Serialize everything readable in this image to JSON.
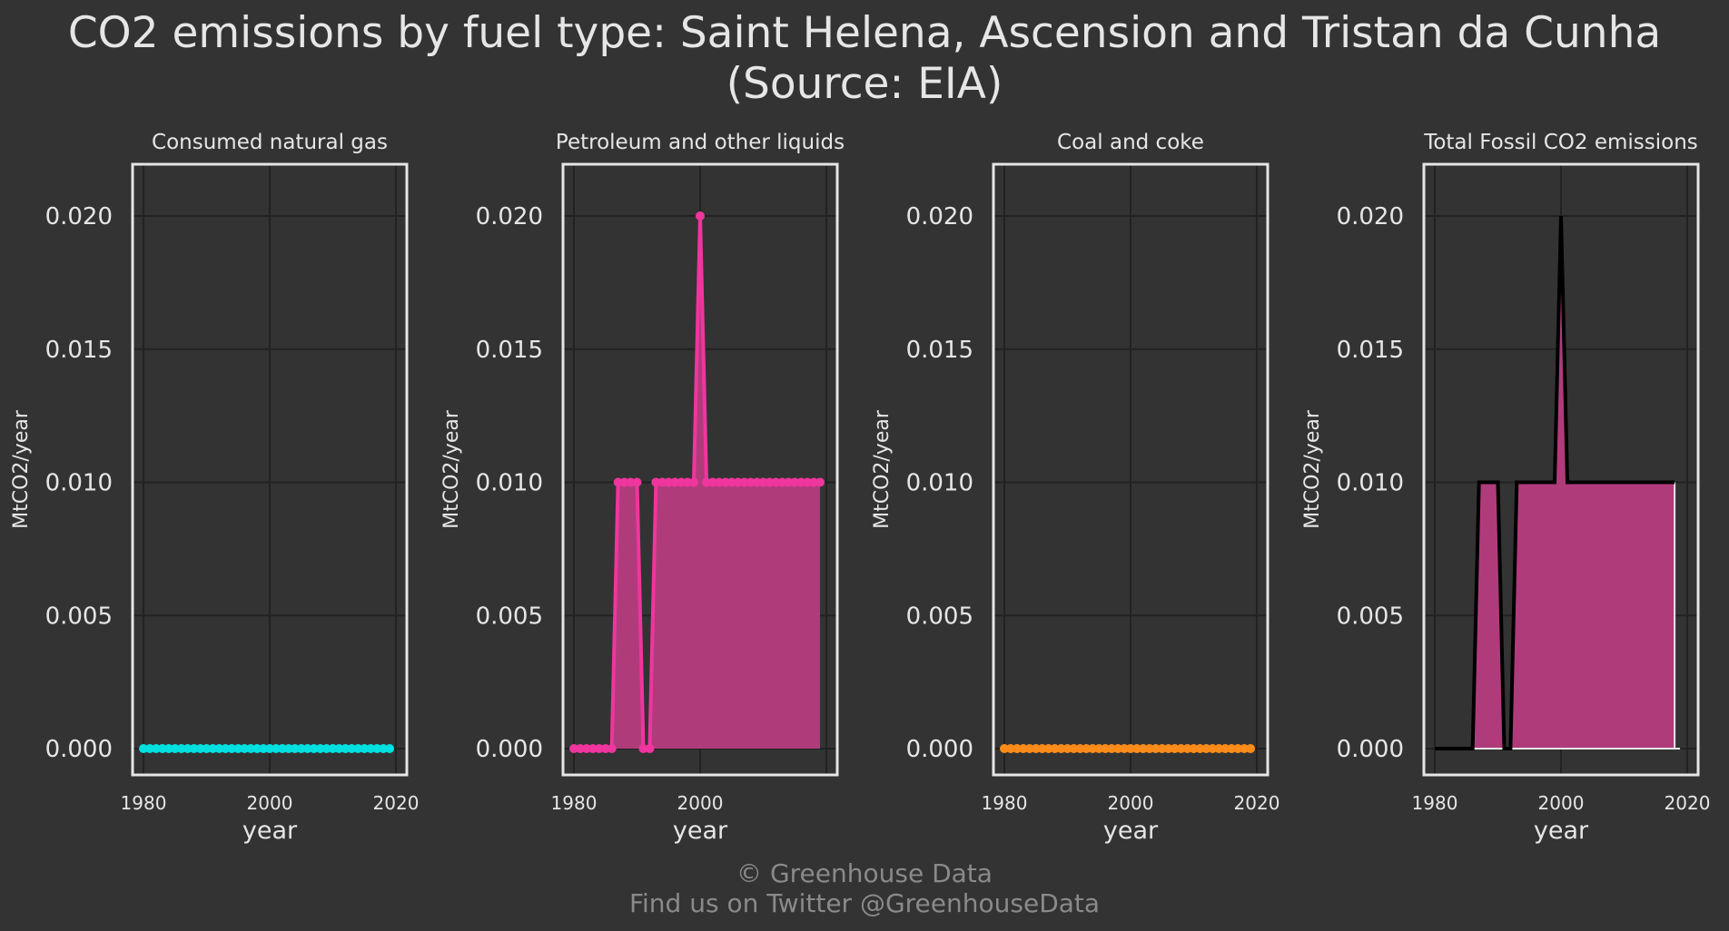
{
  "title_line1": "CO2 emissions by fuel type: Saint Helena, Ascension and Tristan da Cunha",
  "title_line2": "(Source: EIA)",
  "footer_line1": "© Greenhouse Data",
  "footer_line2": "Find us on Twitter @GreenhouseData",
  "colors": {
    "background": "#333333",
    "grid": "#222222",
    "frame": "#e6e6e6",
    "gas": "#00e0e0",
    "petroleum": "#f0359e",
    "petroleum_fill": "#b03b7b",
    "coal": "#ff8c1a",
    "total_line": "#000000",
    "total_fill": "#b03b7b"
  },
  "chart_data": [
    {
      "type": "scatter",
      "title": "Consumed natural gas",
      "xlabel": "year",
      "ylabel": "MtCO2/year",
      "xlim": [
        1980,
        2020
      ],
      "ylim": [
        0,
        0.02
      ],
      "xticks": [
        "1980",
        "2000",
        "2020"
      ],
      "yticks": [
        "0.000",
        "0.005",
        "0.010",
        "0.015",
        "0.020"
      ],
      "x": [
        1980,
        1981,
        1982,
        1983,
        1984,
        1985,
        1986,
        1987,
        1988,
        1989,
        1990,
        1991,
        1992,
        1993,
        1994,
        1995,
        1996,
        1997,
        1998,
        1999,
        2000,
        2001,
        2002,
        2003,
        2004,
        2005,
        2006,
        2007,
        2008,
        2009,
        2010,
        2011,
        2012,
        2013,
        2014,
        2015,
        2016,
        2017,
        2018,
        2019
      ],
      "values": [
        0,
        0,
        0,
        0,
        0,
        0,
        0,
        0,
        0,
        0,
        0,
        0,
        0,
        0,
        0,
        0,
        0,
        0,
        0,
        0,
        0,
        0,
        0,
        0,
        0,
        0,
        0,
        0,
        0,
        0,
        0,
        0,
        0,
        0,
        0,
        0,
        0,
        0,
        0,
        0
      ],
      "color": "#00e0e0"
    },
    {
      "type": "area",
      "title": "Petroleum and other liquids",
      "xlabel": "year",
      "ylabel": "MtCO2/year",
      "xlim": [
        1980,
        2020
      ],
      "ylim": [
        0,
        0.02
      ],
      "xticks": [
        "1980",
        "2000"
      ],
      "yticks": [
        "0.000",
        "0.005",
        "0.010",
        "0.015",
        "0.020"
      ],
      "x": [
        1980,
        1981,
        1982,
        1983,
        1984,
        1985,
        1986,
        1987,
        1988,
        1989,
        1990,
        1991,
        1992,
        1993,
        1994,
        1995,
        1996,
        1997,
        1998,
        1999,
        2000,
        2001,
        2002,
        2003,
        2004,
        2005,
        2006,
        2007,
        2008,
        2009,
        2010,
        2011,
        2012,
        2013,
        2014,
        2015,
        2016,
        2017,
        2018,
        2019
      ],
      "values": [
        0,
        0,
        0,
        0,
        0,
        0,
        0,
        0.01,
        0.01,
        0.01,
        0.01,
        0,
        0,
        0.01,
        0.01,
        0.01,
        0.01,
        0.01,
        0.01,
        0.01,
        0.02,
        0.01,
        0.01,
        0.01,
        0.01,
        0.01,
        0.01,
        0.01,
        0.01,
        0.01,
        0.01,
        0.01,
        0.01,
        0.01,
        0.01,
        0.01,
        0.01,
        0.01,
        0.01,
        0.01
      ],
      "color": "#f0359e"
    },
    {
      "type": "scatter",
      "title": "Coal and coke",
      "xlabel": "year",
      "ylabel": "MtCO2/year",
      "xlim": [
        1980,
        2020
      ],
      "ylim": [
        0,
        0.02
      ],
      "xticks": [
        "1980",
        "2000",
        "2020"
      ],
      "yticks": [
        "0.000",
        "0.005",
        "0.010",
        "0.015",
        "0.020"
      ],
      "x": [
        1980,
        1981,
        1982,
        1983,
        1984,
        1985,
        1986,
        1987,
        1988,
        1989,
        1990,
        1991,
        1992,
        1993,
        1994,
        1995,
        1996,
        1997,
        1998,
        1999,
        2000,
        2001,
        2002,
        2003,
        2004,
        2005,
        2006,
        2007,
        2008,
        2009,
        2010,
        2011,
        2012,
        2013,
        2014,
        2015,
        2016,
        2017,
        2018,
        2019
      ],
      "values": [
        0,
        0,
        0,
        0,
        0,
        0,
        0,
        0,
        0,
        0,
        0,
        0,
        0,
        0,
        0,
        0,
        0,
        0,
        0,
        0,
        0,
        0,
        0,
        0,
        0,
        0,
        0,
        0,
        0,
        0,
        0,
        0,
        0,
        0,
        0,
        0,
        0,
        0,
        0,
        0
      ],
      "color": "#ff8c1a"
    },
    {
      "type": "area",
      "title": "Total Fossil CO2 emissions",
      "xlabel": "year",
      "ylabel": "MtCO2/year",
      "xlim": [
        1980,
        2020
      ],
      "ylim": [
        0,
        0.02
      ],
      "xticks": [
        "1980",
        "2000",
        "2020"
      ],
      "yticks": [
        "0.000",
        "0.005",
        "0.010",
        "0.015",
        "0.020"
      ],
      "x": [
        1980,
        1981,
        1982,
        1983,
        1984,
        1985,
        1986,
        1987,
        1988,
        1989,
        1990,
        1991,
        1992,
        1993,
        1994,
        1995,
        1996,
        1997,
        1998,
        1999,
        2000,
        2001,
        2002,
        2003,
        2004,
        2005,
        2006,
        2007,
        2008,
        2009,
        2010,
        2011,
        2012,
        2013,
        2014,
        2015,
        2016,
        2017,
        2018
      ],
      "values": [
        0,
        0,
        0,
        0,
        0,
        0,
        0,
        0.01,
        0.01,
        0.01,
        0.01,
        0,
        0,
        0.01,
        0.01,
        0.01,
        0.01,
        0.01,
        0.01,
        0.01,
        0.02,
        0.01,
        0.01,
        0.01,
        0.01,
        0.01,
        0.01,
        0.01,
        0.01,
        0.01,
        0.01,
        0.01,
        0.01,
        0.01,
        0.01,
        0.01,
        0.01,
        0.01,
        0.01
      ],
      "color": "#000000"
    }
  ]
}
